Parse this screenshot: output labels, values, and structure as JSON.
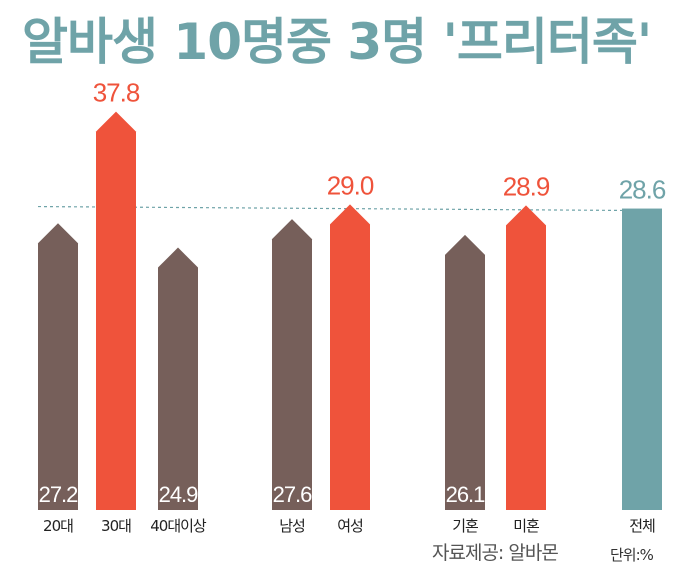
{
  "title": "알바생 10명중 3명 '프리터족'",
  "source": "자료제공: 알바몬",
  "unit": "단위:%",
  "colors": {
    "title": "#6fa3a8",
    "base": "#765f5a",
    "highlight": "#ef533b",
    "total": "#6fa3a8",
    "reference_line": "#6fa3a8"
  },
  "chart_data": {
    "type": "bar",
    "categories": [
      "20대",
      "30대",
      "40대이상",
      "남성",
      "여성",
      "기혼",
      "미혼",
      "전체"
    ],
    "values": [
      27.2,
      37.8,
      24.9,
      27.6,
      29.0,
      26.1,
      28.9,
      28.6
    ],
    "value_labels": [
      "27.2",
      "37.8",
      "24.9",
      "27.6",
      "29.0",
      "26.1",
      "28.9",
      "28.6"
    ],
    "groups": [
      [
        "20대",
        "30대",
        "40대이상"
      ],
      [
        "남성",
        "여성"
      ],
      [
        "기혼",
        "미혼"
      ],
      [
        "전체"
      ]
    ],
    "highlighted": [
      "30대",
      "여성",
      "미혼"
    ],
    "total_category": "전체",
    "reference_line_value": 28.6,
    "title": "알바생 10명중 3명 '프리터족'",
    "unit": "%",
    "grid": false,
    "legend": "none"
  }
}
